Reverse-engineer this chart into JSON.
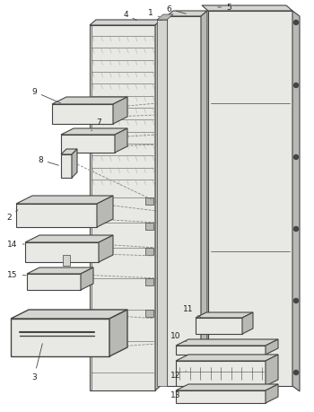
{
  "bg": "#ffffff",
  "lc": "#444444",
  "fc_light": "#e8e8e4",
  "fc_mid": "#d4d4d0",
  "fc_dark": "#b8b8b4",
  "fc_darker": "#a0a09c",
  "lw_main": 0.8,
  "lw_thin": 0.5
}
